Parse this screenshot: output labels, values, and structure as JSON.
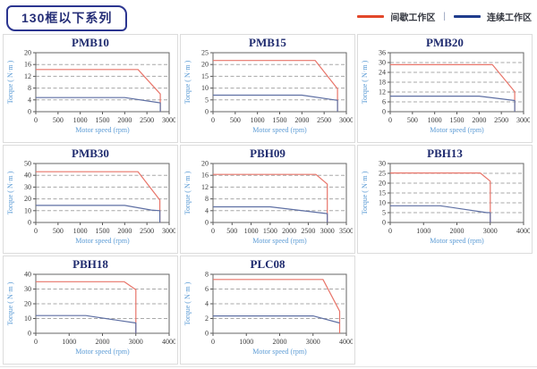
{
  "header": {
    "title": "130框以下系列",
    "legend": [
      {
        "label": "间歇工作区",
        "color": "#e2472a"
      },
      {
        "label": "连续工作区",
        "color": "#1f3c8c"
      }
    ],
    "legend_separator": "|"
  },
  "chart_data": [
    {
      "type": "line",
      "title": "PMB10",
      "xlabel": "Motor speed (rpm)",
      "ylabel": "Torque ( N·m )",
      "xlim": [
        0,
        3000
      ],
      "xticks": [
        0,
        500,
        1000,
        1500,
        2000,
        2500,
        3000
      ],
      "ylim": [
        0,
        20
      ],
      "yticks": [
        0,
        4,
        8,
        12,
        16,
        20
      ],
      "grid": "horizontal-dashed",
      "series": [
        {
          "name": "间歇工作区",
          "color": "#e8756a",
          "points": [
            [
              0,
              14.3
            ],
            [
              2300,
              14.3
            ],
            [
              2800,
              6
            ],
            [
              2800,
              0
            ]
          ]
        },
        {
          "name": "连续工作区",
          "color": "#5e6fa3",
          "points": [
            [
              0,
              4.8
            ],
            [
              2000,
              4.8
            ],
            [
              2800,
              3
            ],
            [
              2800,
              0
            ]
          ]
        }
      ]
    },
    {
      "type": "line",
      "title": "PMB15",
      "xlabel": "Motor speed (rpm)",
      "ylabel": "Torque ( N·m )",
      "xlim": [
        0,
        3000
      ],
      "xticks": [
        0,
        500,
        1000,
        1500,
        2000,
        2500,
        3000
      ],
      "ylim": [
        0,
        25
      ],
      "yticks": [
        0,
        5,
        10,
        15,
        20,
        25
      ],
      "grid": "horizontal-dashed",
      "series": [
        {
          "name": "间歇工作区",
          "color": "#e8756a",
          "points": [
            [
              0,
              21.7
            ],
            [
              2300,
              21.7
            ],
            [
              2800,
              9.7
            ],
            [
              2800,
              0
            ]
          ]
        },
        {
          "name": "连续工作区",
          "color": "#5e6fa3",
          "points": [
            [
              0,
              7
            ],
            [
              2000,
              7
            ],
            [
              2800,
              4.8
            ],
            [
              2800,
              0
            ]
          ]
        }
      ]
    },
    {
      "type": "line",
      "title": "PMB20",
      "xlabel": "Motor speed (rpm)",
      "ylabel": "Torque ( N·m )",
      "xlim": [
        0,
        3000
      ],
      "xticks": [
        0,
        500,
        1000,
        1500,
        2000,
        2500,
        3000
      ],
      "ylim": [
        0,
        36
      ],
      "yticks": [
        0,
        6,
        12,
        18,
        24,
        30,
        36
      ],
      "grid": "horizontal-dashed",
      "series": [
        {
          "name": "间歇工作区",
          "color": "#e8756a",
          "points": [
            [
              0,
              28.7
            ],
            [
              2300,
              28.7
            ],
            [
              2800,
              12.2
            ],
            [
              2800,
              0
            ]
          ]
        },
        {
          "name": "连续工作区",
          "color": "#5e6fa3",
          "points": [
            [
              0,
              9.5
            ],
            [
              2000,
              9.5
            ],
            [
              2800,
              6.8
            ],
            [
              2800,
              0
            ]
          ]
        }
      ]
    },
    {
      "type": "line",
      "title": "PMB30",
      "xlabel": "Motor speed (rpm)",
      "ylabel": "Torque ( N·m )",
      "xlim": [
        0,
        3000
      ],
      "xticks": [
        0,
        500,
        1000,
        1500,
        2000,
        2500,
        3000
      ],
      "ylim": [
        0,
        50
      ],
      "yticks": [
        0,
        10,
        20,
        30,
        40,
        50
      ],
      "grid": "horizontal-dashed",
      "series": [
        {
          "name": "间歇工作区",
          "color": "#e8756a",
          "points": [
            [
              0,
              43
            ],
            [
              2300,
              43
            ],
            [
              2790,
              19
            ],
            [
              2790,
              0
            ]
          ]
        },
        {
          "name": "连续工作区",
          "color": "#5e6fa3",
          "points": [
            [
              0,
              14.5
            ],
            [
              2000,
              14.5
            ],
            [
              2600,
              10.5
            ],
            [
              2790,
              10
            ],
            [
              2790,
              0
            ]
          ]
        }
      ]
    },
    {
      "type": "line",
      "title": "PBH09",
      "xlabel": "Motor speed (rpm)",
      "ylabel": "Torque ( N·m )",
      "xlim": [
        0,
        3500
      ],
      "xticks": [
        0,
        500,
        1000,
        1500,
        2000,
        2500,
        3000,
        3500
      ],
      "ylim": [
        0,
        20
      ],
      "yticks": [
        0,
        4,
        8,
        12,
        16,
        20
      ],
      "grid": "horizontal-dashed",
      "series": [
        {
          "name": "间歇工作区",
          "color": "#e8756a",
          "points": [
            [
              0,
              16.3
            ],
            [
              2700,
              16.3
            ],
            [
              3000,
              13
            ],
            [
              3000,
              0
            ]
          ]
        },
        {
          "name": "连续工作区",
          "color": "#5e6fa3",
          "points": [
            [
              0,
              5.3
            ],
            [
              1500,
              5.3
            ],
            [
              3000,
              3
            ],
            [
              3000,
              0
            ]
          ]
        }
      ]
    },
    {
      "type": "line",
      "title": "PBH13",
      "xlabel": "Motor speed (rpm)",
      "ylabel": "Torque ( N·m )",
      "xlim": [
        0,
        4000
      ],
      "xticks": [
        0,
        1000,
        2000,
        3000,
        4000
      ],
      "ylim": [
        0,
        30
      ],
      "yticks": [
        0,
        5,
        10,
        15,
        20,
        25,
        30
      ],
      "grid": "horizontal-dashed",
      "series": [
        {
          "name": "间歇工作区",
          "color": "#e8756a",
          "points": [
            [
              0,
              25.2
            ],
            [
              2700,
              25.2
            ],
            [
              3000,
              21
            ],
            [
              3000,
              0
            ]
          ]
        },
        {
          "name": "连续工作区",
          "color": "#5e6fa3",
          "points": [
            [
              0,
              8.5
            ],
            [
              1500,
              8.5
            ],
            [
              2900,
              5
            ],
            [
              3000,
              5
            ],
            [
              3000,
              0
            ]
          ]
        }
      ]
    },
    {
      "type": "line",
      "title": "PBH18",
      "xlabel": "Motor speed (rpm)",
      "ylabel": "Torque ( N·m )",
      "xlim": [
        0,
        4000
      ],
      "xticks": [
        0,
        1000,
        2000,
        3000,
        4000
      ],
      "ylim": [
        0,
        40
      ],
      "yticks": [
        0,
        10,
        20,
        30,
        40
      ],
      "grid": "horizontal-dashed",
      "series": [
        {
          "name": "间歇工作区",
          "color": "#e8756a",
          "points": [
            [
              0,
              35
            ],
            [
              2650,
              35
            ],
            [
              3000,
              29.5
            ],
            [
              3000,
              0
            ]
          ]
        },
        {
          "name": "连续工作区",
          "color": "#5e6fa3",
          "points": [
            [
              0,
              12
            ],
            [
              1500,
              12
            ],
            [
              3000,
              7
            ],
            [
              3000,
              0
            ]
          ]
        }
      ]
    },
    {
      "type": "line",
      "title": "PLC08",
      "xlabel": "Motor speed (rpm)",
      "ylabel": "Torque ( N·m )",
      "xlim": [
        0,
        4000
      ],
      "xticks": [
        0,
        1000,
        2000,
        3000,
        4000
      ],
      "ylim": [
        0,
        8
      ],
      "yticks": [
        0,
        2,
        4,
        6,
        8
      ],
      "grid": "horizontal-dashed",
      "series": [
        {
          "name": "间歇工作区",
          "color": "#e8756a",
          "points": [
            [
              0,
              7.3
            ],
            [
              3300,
              7.3
            ],
            [
              3800,
              3
            ],
            [
              3800,
              0
            ]
          ]
        },
        {
          "name": "连续工作区",
          "color": "#5e6fa3",
          "points": [
            [
              0,
              2.35
            ],
            [
              3000,
              2.35
            ],
            [
              3800,
              1.4
            ]
          ]
        }
      ]
    }
  ]
}
